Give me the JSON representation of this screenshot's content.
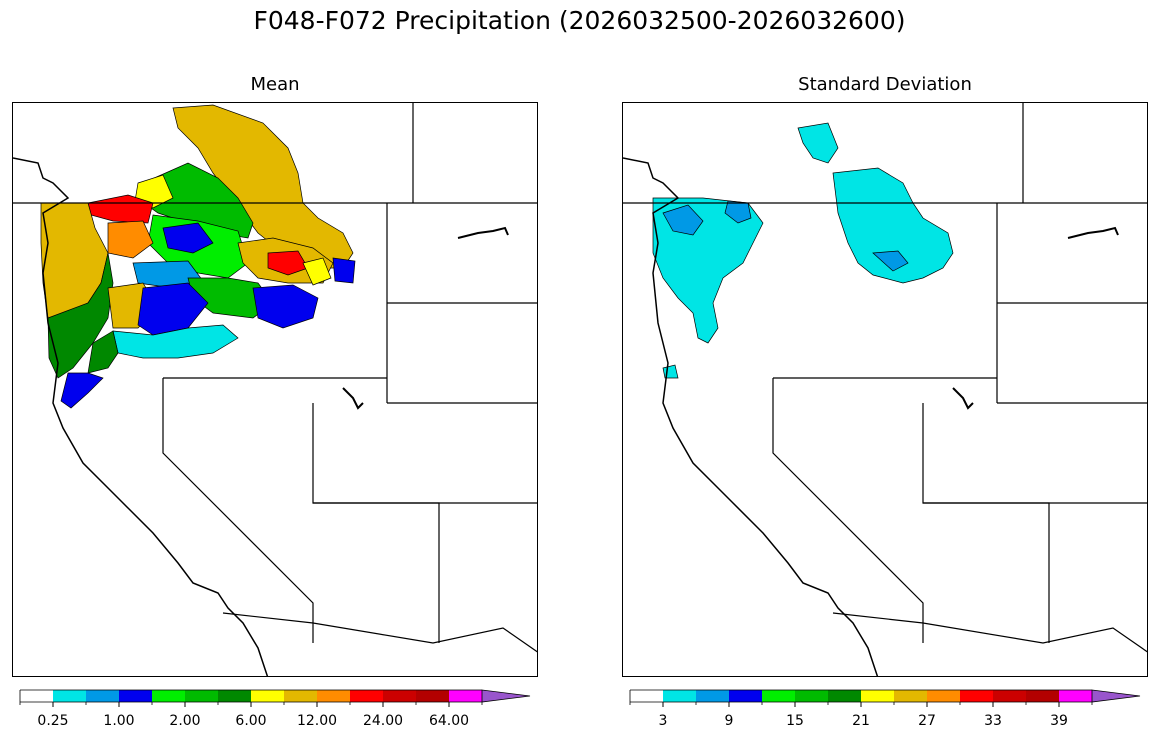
{
  "figure": {
    "title": "F048-F072 Precipitation (2026032500-2026032600)"
  },
  "panels": [
    {
      "title": "Mean"
    },
    {
      "title": "Standard Deviation"
    }
  ],
  "colorbars": [
    {
      "colors": [
        "#ffffff",
        "#00e5e5",
        "#0099e6",
        "#0000ee",
        "#00ee00",
        "#00bb00",
        "#008800",
        "#ffff00",
        "#e3b800",
        "#ff8c00",
        "#ff0000",
        "#cc0000",
        "#b30000",
        "#ff00ff",
        "#9955cc"
      ],
      "tick_labels": [
        "0.25",
        "1.00",
        "2.00",
        "6.00",
        "12.00",
        "24.00",
        "64.00"
      ],
      "tick_positions": [
        1,
        3,
        5,
        7,
        9,
        11,
        13
      ]
    },
    {
      "colors": [
        "#ffffff",
        "#00e5e5",
        "#0099e6",
        "#0000ee",
        "#00ee00",
        "#00bb00",
        "#008800",
        "#ffff00",
        "#e3b800",
        "#ff8c00",
        "#ff0000",
        "#cc0000",
        "#b30000",
        "#ff00ff",
        "#9955cc"
      ],
      "tick_labels": [
        "3",
        "9",
        "15",
        "21",
        "27",
        "33",
        "39"
      ],
      "tick_positions": [
        1,
        3,
        5,
        7,
        9,
        11,
        13
      ]
    }
  ]
}
